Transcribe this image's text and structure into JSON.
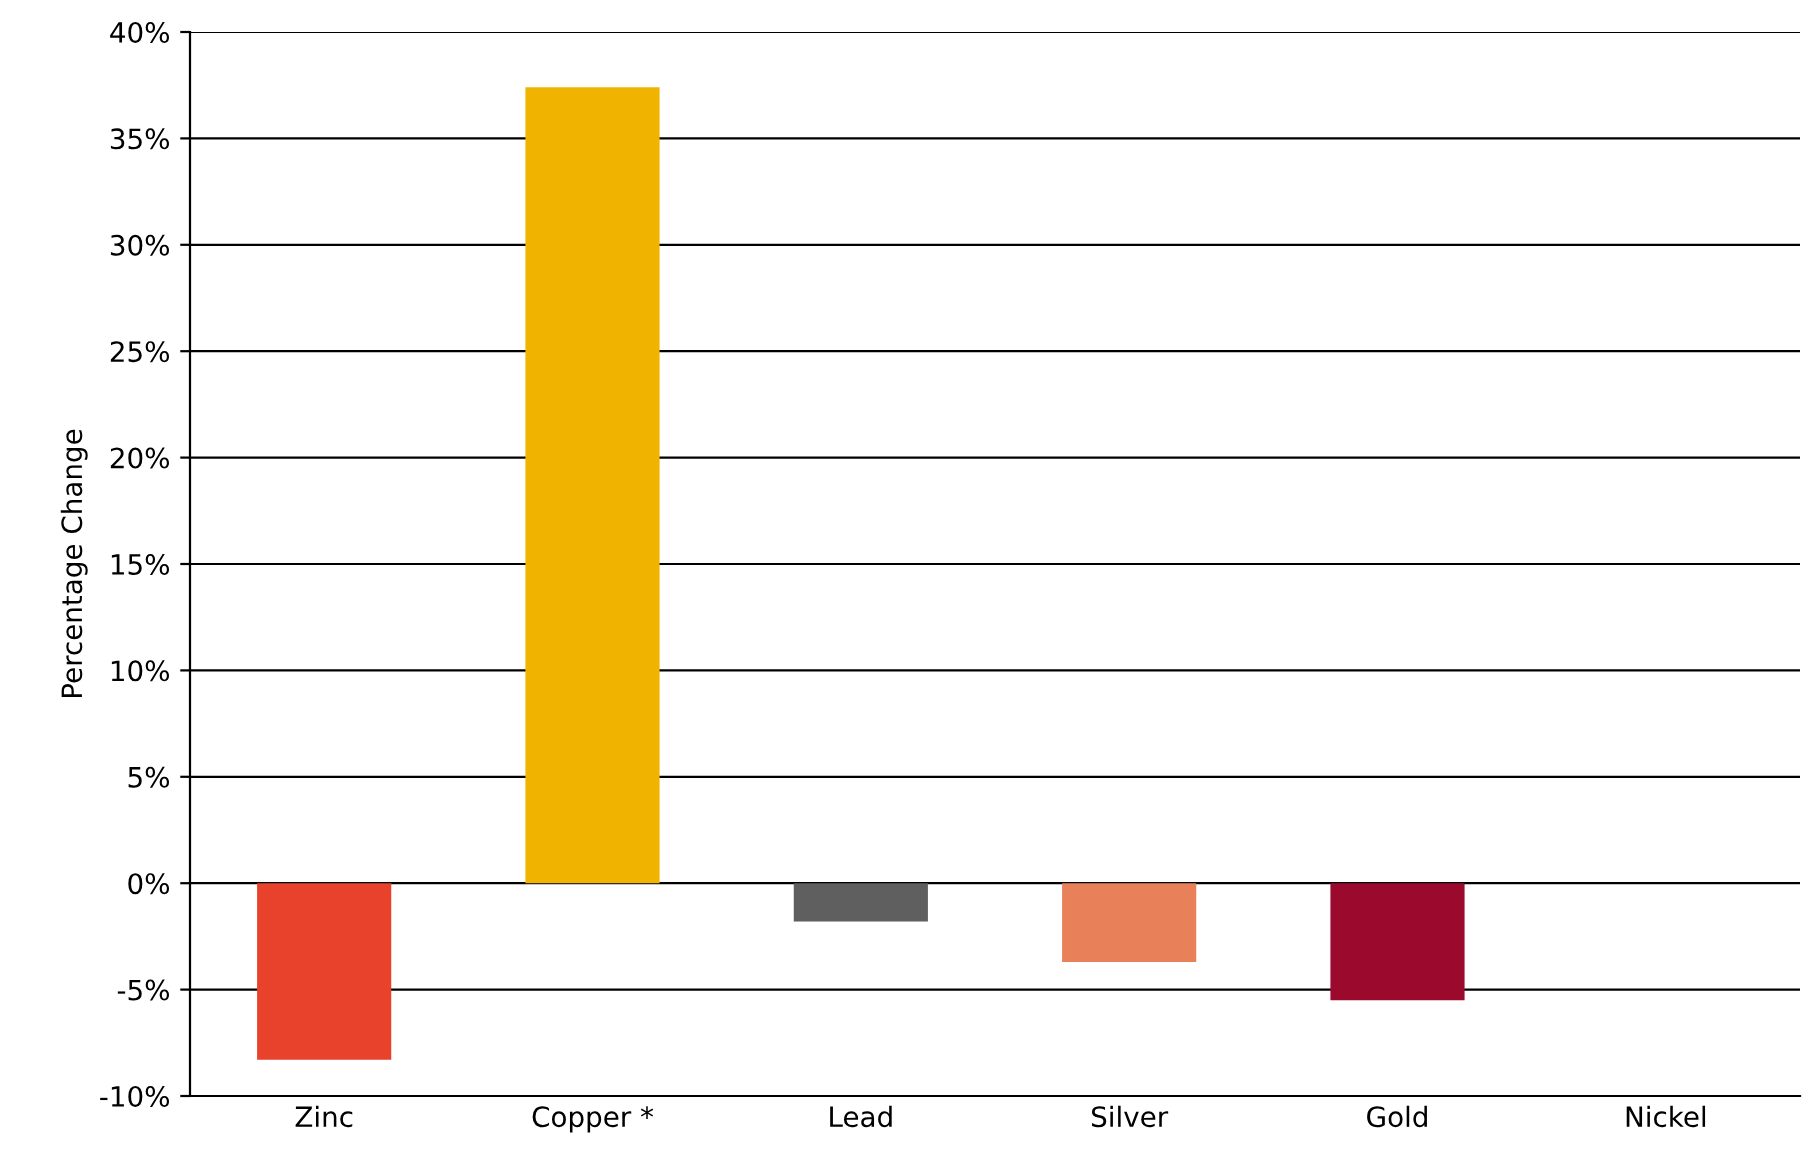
{
  "chart_data": {
    "type": "bar",
    "ylabel": "Percentage Change",
    "categories": [
      "Zinc",
      "Copper *",
      "Lead",
      "Silver",
      "Gold",
      "Nickel"
    ],
    "values": [
      -8.3,
      37.4,
      -1.8,
      -3.7,
      -5.5,
      0
    ],
    "colors": [
      "#e8412c",
      "#f0b400",
      "#5f5f5f",
      "#e8805a",
      "#9b0a2c",
      "#7f7f7f"
    ],
    "ylim": [
      -10,
      40
    ],
    "yticks": [
      {
        "value": -10,
        "label": "-10%"
      },
      {
        "value": -5,
        "label": "-5%"
      },
      {
        "value": 0,
        "label": "0%"
      },
      {
        "value": 5,
        "label": "5%"
      },
      {
        "value": 10,
        "label": "10%"
      },
      {
        "value": 15,
        "label": "15%"
      },
      {
        "value": 20,
        "label": "20%"
      },
      {
        "value": 25,
        "label": "25%"
      },
      {
        "value": 30,
        "label": "30%"
      },
      {
        "value": 35,
        "label": "35%"
      },
      {
        "value": 40,
        "label": "40%"
      }
    ],
    "grid": "y"
  }
}
